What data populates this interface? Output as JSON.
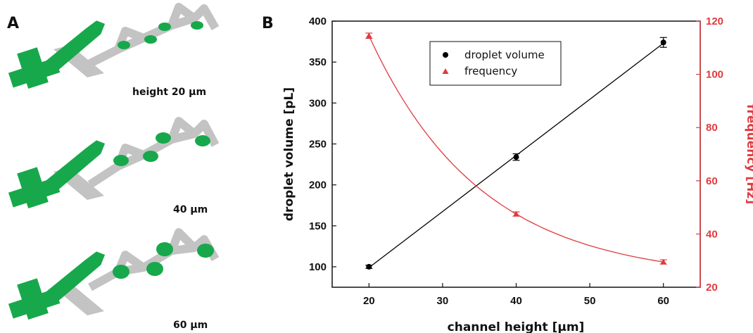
{
  "panel_a": {
    "letter": "A",
    "captions": [
      "height 20 µm",
      "40 µm",
      "60 µm"
    ],
    "colors": {
      "fluid": "#17a84b",
      "channel": "#c3c3c3"
    }
  },
  "panel_b": {
    "letter": "B"
  },
  "chart_data": {
    "type": "scatter",
    "xlabel": "channel height [µm]",
    "ylabel": "droplet volume [pL]",
    "y2label": "frequency [Hz]",
    "xlim": [
      15,
      65
    ],
    "ylim": [
      75,
      400
    ],
    "y2lim": [
      20,
      120
    ],
    "x_ticks": [
      20,
      30,
      40,
      50,
      60
    ],
    "y_ticks": [
      100,
      150,
      200,
      250,
      300,
      350,
      400
    ],
    "y2_ticks": [
      20,
      40,
      60,
      80,
      100,
      120
    ],
    "legend_position": "top-center",
    "grid": false,
    "series": [
      {
        "name": "droplet volume",
        "axis": "left",
        "color": "#000000",
        "marker": "circle",
        "fit": "linear",
        "x": [
          20,
          40,
          60
        ],
        "y": [
          100,
          234,
          374
        ],
        "error": [
          2,
          4,
          6
        ]
      },
      {
        "name": "frequency",
        "axis": "right",
        "color": "#e03a3e",
        "marker": "triangle",
        "fit": "exponential",
        "x": [
          20,
          40,
          60
        ],
        "y": [
          114.5,
          47.5,
          29.5
        ],
        "error": [
          1,
          0.8,
          0.8
        ]
      }
    ]
  }
}
